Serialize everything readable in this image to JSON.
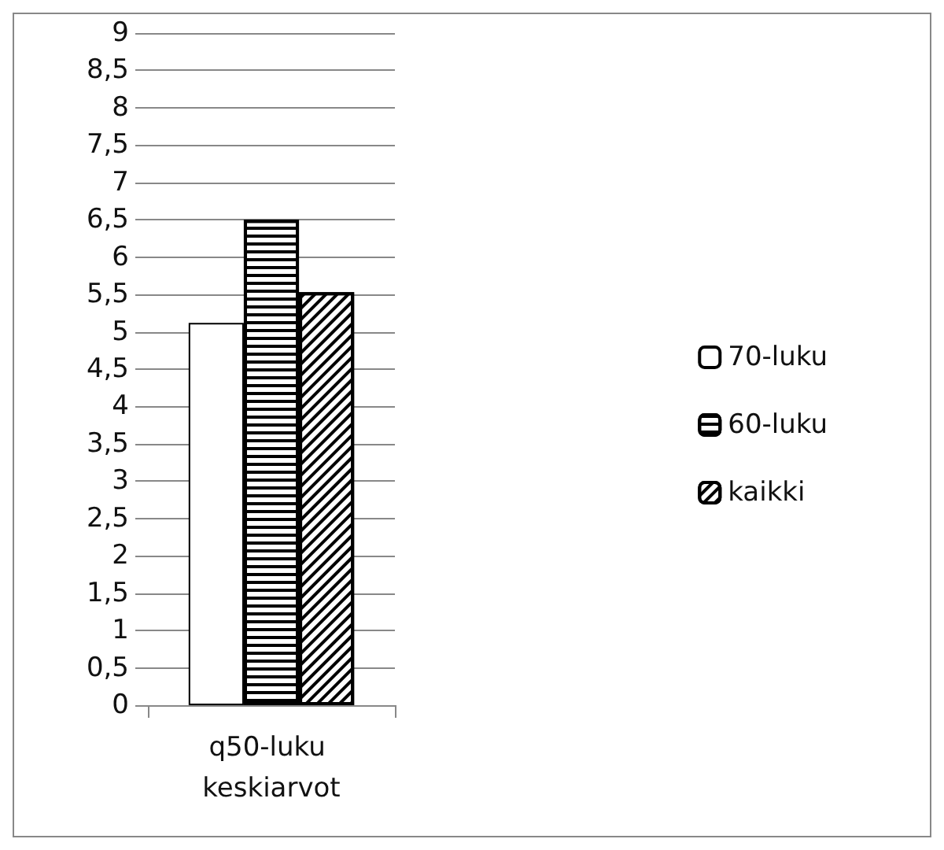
{
  "chart_data": {
    "type": "bar",
    "categories": [
      "q50-luku keskiarvot"
    ],
    "series": [
      {
        "name": "70-luku",
        "color": "#ffffff",
        "values": [
          5.12
        ]
      },
      {
        "name": "60-luku",
        "color": "#000000",
        "values": [
          6.5
        ]
      },
      {
        "name": "kaikki",
        "color": "#000000",
        "values": [
          5.53
        ]
      }
    ],
    "ylim": [
      0,
      9
    ],
    "yticks": [
      0,
      {
        "value": 0.5,
        "label": "0,5"
      },
      1,
      {
        "value": 1.5,
        "label": "1,5"
      },
      2,
      {
        "value": 2.5,
        "label": "2,5"
      },
      3,
      {
        "value": 3.5,
        "label": "3,5"
      },
      4,
      {
        "value": 4.5,
        "label": "4,5"
      },
      5,
      {
        "value": 5.5,
        "label": "5,5"
      },
      6,
      {
        "value": 6.5,
        "label": "6,5"
      },
      7,
      {
        "value": 7.5,
        "label": "7,5"
      },
      8,
      {
        "value": 8.5,
        "label": "8,5"
      },
      9
    ],
    "grid": "y",
    "legend": "right"
  }
}
